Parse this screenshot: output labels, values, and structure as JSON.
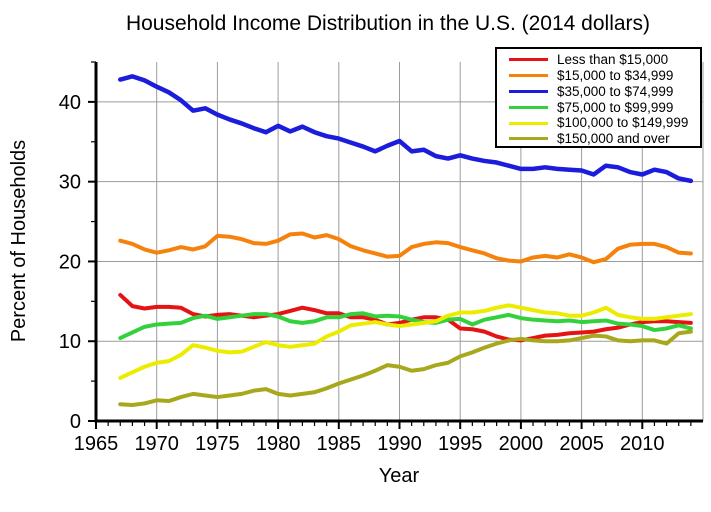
{
  "chart_data": {
    "type": "line",
    "title": "Household Income Distribution in the U.S. (2014 dollars)",
    "xlabel": "Year",
    "ylabel": "Percent of Households",
    "xlim": [
      1965,
      2015
    ],
    "ylim": [
      0,
      45
    ],
    "grid": true,
    "legend_position": "top-right",
    "background": "#ffffff",
    "axis_color": "#000000",
    "grid_color": "#9b9b9b",
    "x_major_ticks": [
      1965,
      1970,
      1975,
      1980,
      1985,
      1990,
      1995,
      2000,
      2005,
      2010
    ],
    "x_minor_step": 1,
    "x_gridlines": [
      1970,
      1975,
      1980,
      1985,
      1990,
      1995,
      2000,
      2005,
      2010,
      2015
    ],
    "y_major_ticks": [
      0,
      10,
      20,
      30,
      40
    ],
    "y_minor_ticks": [
      5,
      15,
      25,
      35,
      45
    ],
    "y_gridlines": [
      10,
      20,
      30,
      40
    ],
    "x": [
      1967,
      1968,
      1969,
      1970,
      1971,
      1972,
      1973,
      1974,
      1975,
      1976,
      1977,
      1978,
      1979,
      1980,
      1981,
      1982,
      1983,
      1984,
      1985,
      1986,
      1987,
      1988,
      1989,
      1990,
      1991,
      1992,
      1993,
      1994,
      1995,
      1996,
      1997,
      1998,
      1999,
      2000,
      2001,
      2002,
      2003,
      2004,
      2005,
      2006,
      2007,
      2008,
      2009,
      2010,
      2011,
      2012,
      2013,
      2014
    ],
    "series": [
      {
        "name": "Less than $15,000",
        "color": "#e41414",
        "values": [
          15.8,
          14.4,
          14.1,
          14.3,
          14.3,
          14.2,
          13.4,
          13.1,
          13.3,
          13.4,
          13.2,
          13.0,
          13.2,
          13.4,
          13.8,
          14.2,
          13.9,
          13.5,
          13.5,
          13.0,
          13.0,
          12.7,
          12.1,
          12.3,
          12.7,
          13.0,
          13.0,
          12.7,
          11.6,
          11.5,
          11.2,
          10.6,
          10.2,
          10.1,
          10.4,
          10.7,
          10.8,
          11.0,
          11.1,
          11.2,
          11.5,
          11.7,
          12.1,
          12.4,
          12.5,
          12.5,
          12.4,
          12.3
        ]
      },
      {
        "name": "$15,000 to $34,999",
        "color": "#f5820d",
        "values": [
          22.6,
          22.2,
          21.5,
          21.1,
          21.4,
          21.8,
          21.5,
          21.9,
          23.2,
          23.1,
          22.8,
          22.3,
          22.2,
          22.6,
          23.4,
          23.5,
          23.0,
          23.3,
          22.8,
          21.9,
          21.4,
          21.0,
          20.6,
          20.7,
          21.8,
          22.2,
          22.4,
          22.3,
          21.8,
          21.4,
          21.0,
          20.4,
          20.1,
          20.0,
          20.5,
          20.7,
          20.5,
          20.9,
          20.5,
          19.9,
          20.3,
          21.6,
          22.1,
          22.2,
          22.2,
          21.8,
          21.1,
          21.0
        ]
      },
      {
        "name": "$35,000 to $74,999",
        "color": "#1c1cdc",
        "values": [
          42.8,
          43.2,
          42.7,
          41.9,
          41.2,
          40.2,
          38.9,
          39.2,
          38.4,
          37.8,
          37.3,
          36.7,
          36.2,
          37.0,
          36.3,
          36.9,
          36.2,
          35.7,
          35.4,
          34.9,
          34.4,
          33.8,
          34.5,
          35.1,
          33.8,
          34.0,
          33.2,
          32.9,
          33.3,
          32.9,
          32.6,
          32.4,
          32.0,
          31.6,
          31.6,
          31.8,
          31.6,
          31.5,
          31.4,
          30.9,
          32.0,
          31.8,
          31.2,
          30.9,
          31.5,
          31.2,
          30.4,
          30.1
        ]
      },
      {
        "name": "$75,000 to $99,999",
        "color": "#33d23c",
        "values": [
          10.4,
          11.1,
          11.8,
          12.1,
          12.2,
          12.3,
          12.9,
          13.2,
          12.8,
          13.0,
          13.2,
          13.4,
          13.4,
          13.1,
          12.5,
          12.3,
          12.5,
          13.0,
          13.0,
          13.4,
          13.5,
          13.1,
          13.2,
          13.1,
          12.7,
          12.4,
          12.3,
          12.7,
          12.8,
          12.1,
          12.7,
          13.0,
          13.3,
          12.9,
          12.7,
          12.6,
          12.5,
          12.6,
          12.4,
          12.5,
          12.6,
          12.2,
          12.1,
          11.9,
          11.4,
          11.6,
          12.0,
          11.6
        ]
      },
      {
        "name": "$100,000 to $149,999",
        "color": "#ececec00",
        "values": [
          5.4,
          6.1,
          6.8,
          7.3,
          7.5,
          8.3,
          9.5,
          9.2,
          8.8,
          8.6,
          8.7,
          9.3,
          9.9,
          9.5,
          9.3,
          9.5,
          9.7,
          10.6,
          11.2,
          12.0,
          12.2,
          12.4,
          12.1,
          11.9,
          12.1,
          12.3,
          12.5,
          13.2,
          13.6,
          13.6,
          13.8,
          14.2,
          14.5,
          14.2,
          13.9,
          13.6,
          13.5,
          13.2,
          13.2,
          13.6,
          14.2,
          13.3,
          13.0,
          12.8,
          12.8,
          13.0,
          13.2,
          13.4
        ]
      },
      {
        "name": "$150,000 and over",
        "color": "#a8a81c",
        "values": [
          2.1,
          2.0,
          2.2,
          2.6,
          2.5,
          3.0,
          3.4,
          3.2,
          3.0,
          3.2,
          3.4,
          3.8,
          4.0,
          3.4,
          3.2,
          3.4,
          3.6,
          4.1,
          4.7,
          5.2,
          5.7,
          6.3,
          7.0,
          6.8,
          6.3,
          6.5,
          7.0,
          7.3,
          8.1,
          8.6,
          9.2,
          9.7,
          10.1,
          10.3,
          10.1,
          10.0,
          10.0,
          10.1,
          10.4,
          10.7,
          10.6,
          10.1,
          10.0,
          10.1,
          10.1,
          9.7,
          11.0,
          11.2
        ]
      }
    ],
    "series_colors_fix": {
      "yellow": "#ecec00"
    }
  }
}
